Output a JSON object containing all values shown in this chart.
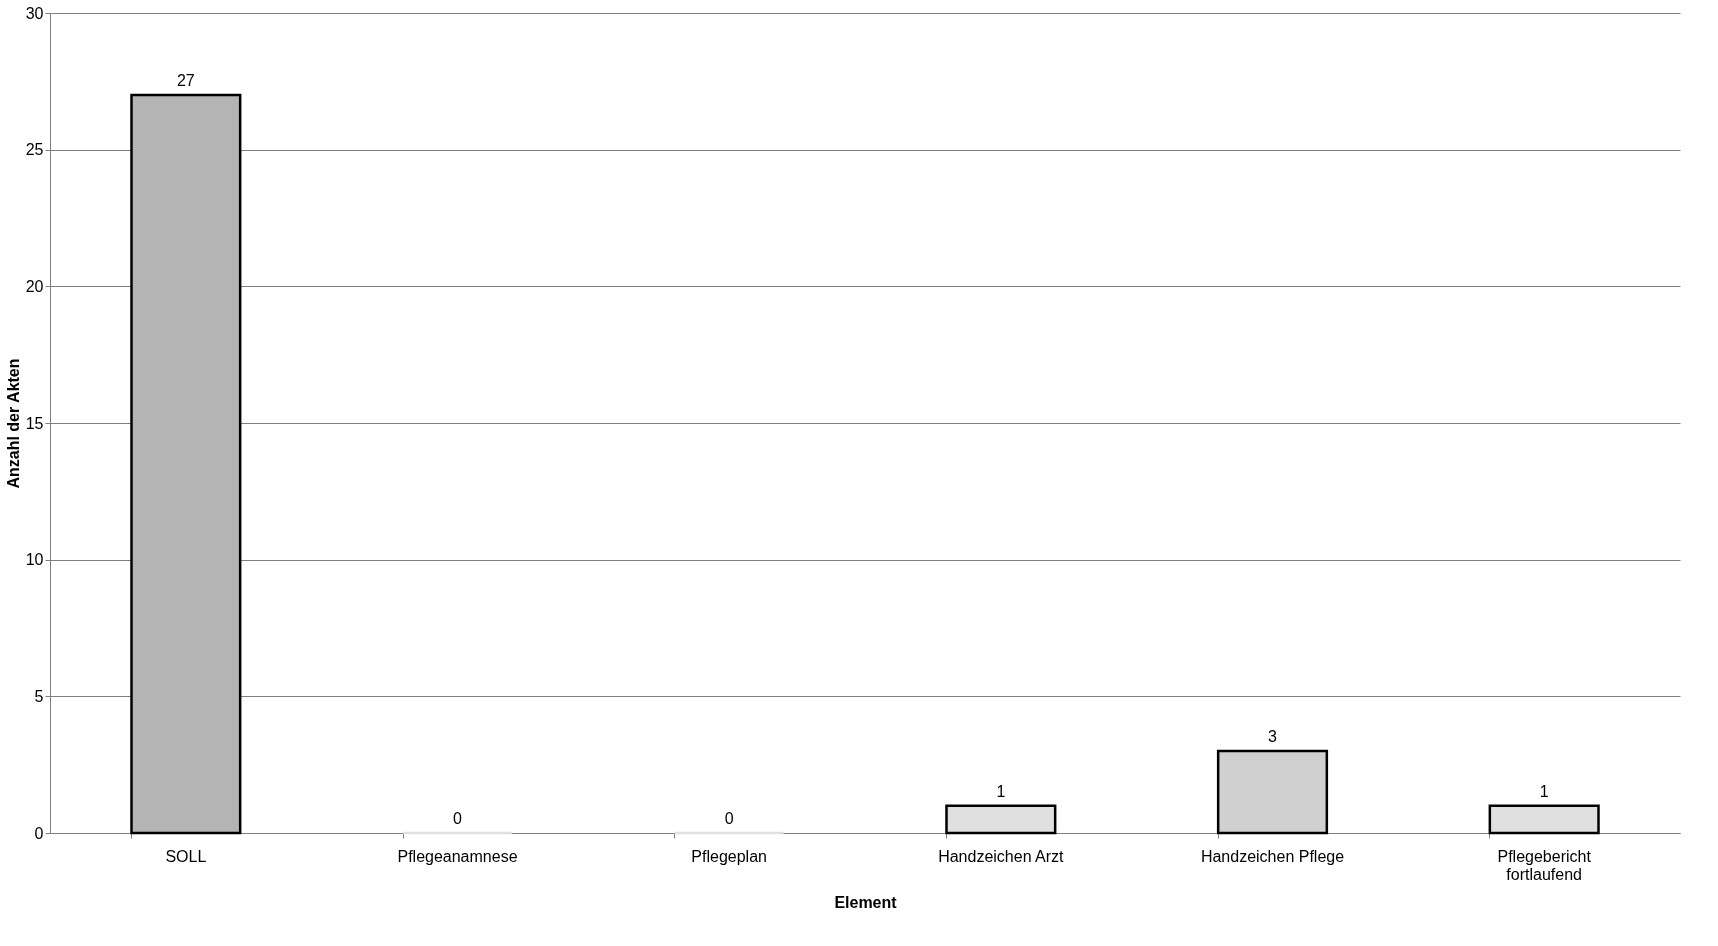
{
  "chart_data": {
    "type": "bar",
    "xlabel": "Element",
    "ylabel": "Anzahl der Akten",
    "categories": [
      "SOLL",
      "Pflegeanamnese",
      "Pflegeplan",
      "Handzeichen Arzt",
      "Handzeichen Pflege",
      "Pflegebericht fortlaufend"
    ],
    "values": [
      27,
      0,
      0,
      1,
      3,
      1
    ],
    "colors": [
      "#b4b4b4",
      "#e0e0e0",
      "#e0e0e0",
      "#e0e0e0",
      "#d0d0d0",
      "#e0e0e0"
    ],
    "ylim": [
      0,
      30
    ],
    "yticks": [
      0,
      5,
      10,
      15,
      20,
      25,
      30
    ],
    "grid": "y",
    "data_labels": true
  }
}
